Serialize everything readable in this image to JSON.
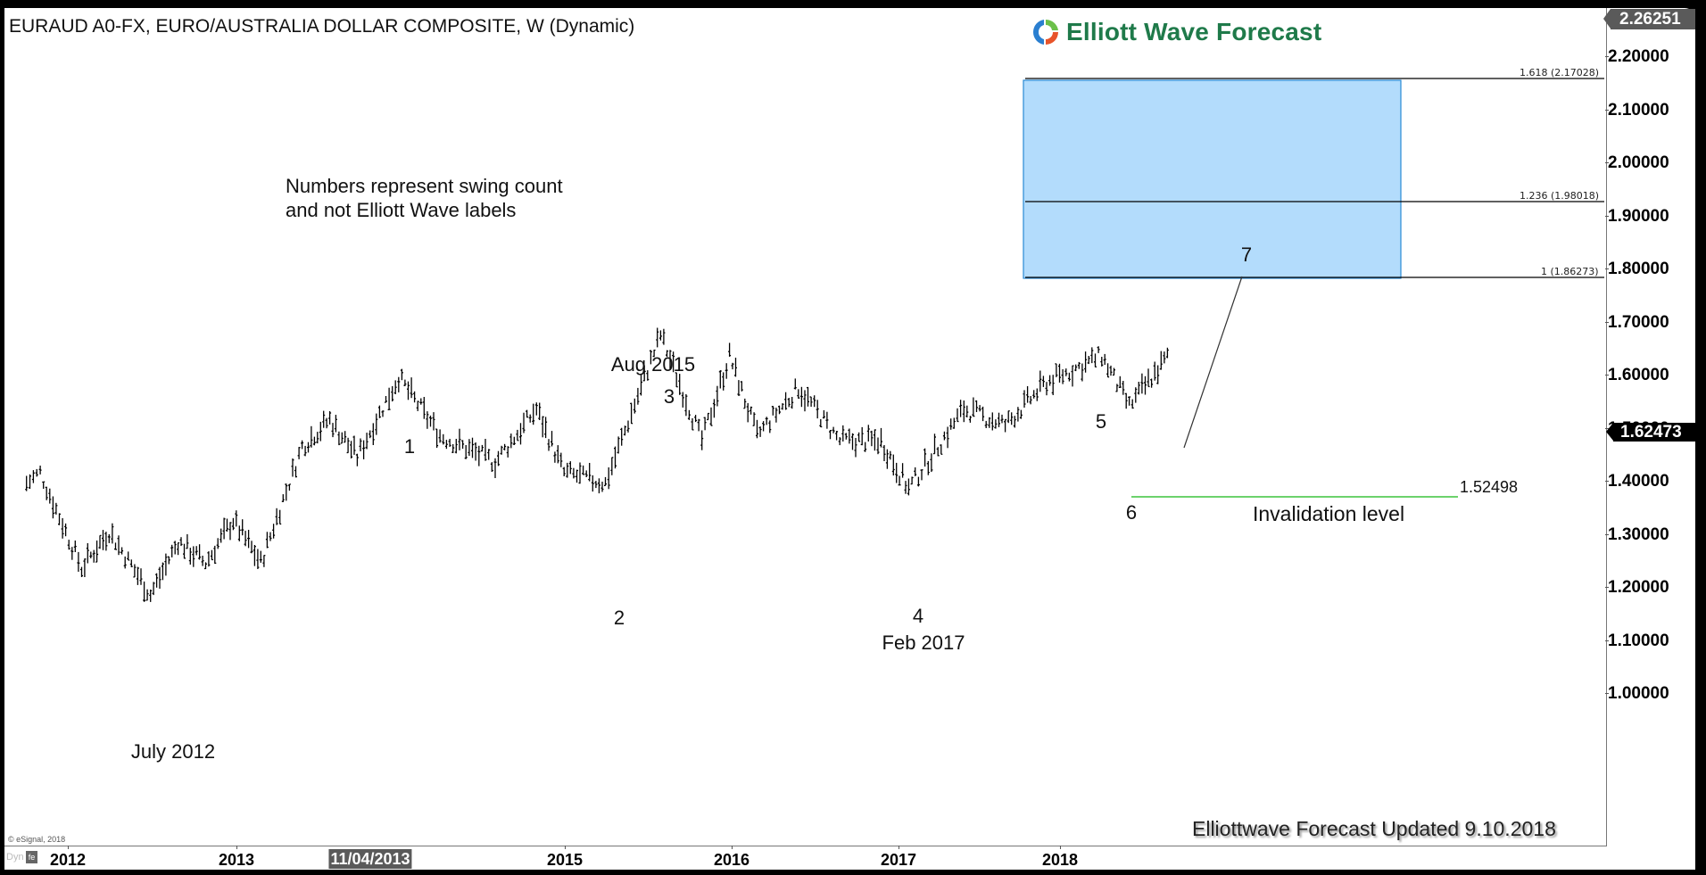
{
  "header": {
    "title": "EURAUD A0-FX, EURO/AUSTRALIA DOLLAR COMPOSITE, W (Dynamic)",
    "logo_text": "Elliott Wave Forecast"
  },
  "note": {
    "line1": "Numbers represent swing count",
    "line2": "and not Elliott Wave labels"
  },
  "annotations": {
    "july2012": "July 2012",
    "aug2015": "Aug 2015",
    "feb2017": "Feb 2017",
    "swing1": "1",
    "swing2": "2",
    "swing3": "3",
    "swing4": "4",
    "swing5": "5",
    "swing6": "6",
    "swing7": "7",
    "invalidation_value": "1.52498",
    "invalidation_label": "Invalidation level",
    "updated": "Elliottwave Forecast Updated 9.10.2018",
    "copyright": "© eSignal, 2018"
  },
  "fib_levels": {
    "f1618": "1.618 (2.17028)",
    "f1236": "1.236 (1.98018)",
    "f1": "1 (1.86273)"
  },
  "y_axis": {
    "max_label": "2.26251",
    "last_price": "1.62473",
    "ticks": [
      "2.20000",
      "2.10000",
      "2.00000",
      "1.90000",
      "1.80000",
      "1.70000",
      "1.60000",
      "1.50000",
      "1.40000",
      "1.30000",
      "1.20000",
      "1.10000",
      "1.00000"
    ]
  },
  "x_axis": {
    "dyn": "Dyn",
    "lock_icon": "fe",
    "cursor_label": "11/04/2013",
    "ticks": [
      "2012",
      "2013",
      "2015",
      "2016",
      "2017",
      "2018"
    ]
  },
  "colors": {
    "target_box_fill": "#b3dcfc",
    "target_box_border": "#2a8ad4",
    "invalidation_line": "#3cc43c",
    "logo_green": "#1f7a4a",
    "bars": "#000000"
  },
  "chart_data": {
    "type": "ohlc-bar",
    "title": "EURAUD A0-FX, EURO/AUSTRALIA DOLLAR COMPOSITE, W (Dynamic)",
    "xlabel": "",
    "ylabel": "",
    "ylim": [
      1.0,
      2.26251
    ],
    "x_ticks": [
      "2012",
      "2013",
      "2015",
      "2016",
      "2017",
      "2018"
    ],
    "y_ticks": [
      2.2,
      2.1,
      2.0,
      1.9,
      1.8,
      1.7,
      1.6,
      1.5,
      1.4,
      1.3,
      1.2,
      1.1,
      1.0
    ],
    "grid": false,
    "last_price": 1.62473,
    "max_scale": 2.26251,
    "approx_swing_path": [
      {
        "date": "2011-10",
        "price": 1.38
      },
      {
        "date": "2011-11",
        "price": 1.4
      },
      {
        "date": "2012-02",
        "price": 1.22
      },
      {
        "date": "2012-04",
        "price": 1.29
      },
      {
        "date": "2012-07",
        "price": 1.17,
        "label": "July 2012"
      },
      {
        "date": "2012-09",
        "price": 1.27
      },
      {
        "date": "2012-11",
        "price": 1.23
      },
      {
        "date": "2013-01",
        "price": 1.31
      },
      {
        "date": "2013-03",
        "price": 1.23
      },
      {
        "date": "2013-06",
        "price": 1.45
      },
      {
        "date": "2013-08",
        "price": 1.5
      },
      {
        "date": "2013-10",
        "price": 1.43
      },
      {
        "date": "2014-01",
        "price": 1.58,
        "label": "1"
      },
      {
        "date": "2014-04",
        "price": 1.47
      },
      {
        "date": "2014-08",
        "price": 1.42
      },
      {
        "date": "2014-11",
        "price": 1.52
      },
      {
        "date": "2015-01",
        "price": 1.4
      },
      {
        "date": "2015-04",
        "price": 1.38,
        "label": "2"
      },
      {
        "date": "2015-08",
        "price": 1.66,
        "label": "3"
      },
      {
        "date": "2015-11",
        "price": 1.46
      },
      {
        "date": "2016-01",
        "price": 1.62
      },
      {
        "date": "2016-03",
        "price": 1.47
      },
      {
        "date": "2016-06",
        "price": 1.56
      },
      {
        "date": "2016-09",
        "price": 1.46
      },
      {
        "date": "2016-12",
        "price": 1.46
      },
      {
        "date": "2017-02",
        "price": 1.37,
        "label": "4"
      },
      {
        "date": "2017-06",
        "price": 1.52
      },
      {
        "date": "2017-09",
        "price": 1.49
      },
      {
        "date": "2017-12",
        "price": 1.57
      },
      {
        "date": "2018-04",
        "price": 1.62,
        "label": "5"
      },
      {
        "date": "2018-06",
        "price": 1.525,
        "label": "6"
      },
      {
        "date": "2018-09",
        "price": 1.625
      }
    ],
    "fibonacci_extensions": [
      {
        "ratio": 1.0,
        "price": 1.86273
      },
      {
        "ratio": 1.236,
        "price": 1.98018
      },
      {
        "ratio": 1.618,
        "price": 2.17028
      }
    ],
    "target_zone": {
      "low": 1.86273,
      "high": 2.17028,
      "label": "7"
    },
    "invalidation_level": {
      "price": 1.52498,
      "label": "Invalidation level"
    }
  }
}
